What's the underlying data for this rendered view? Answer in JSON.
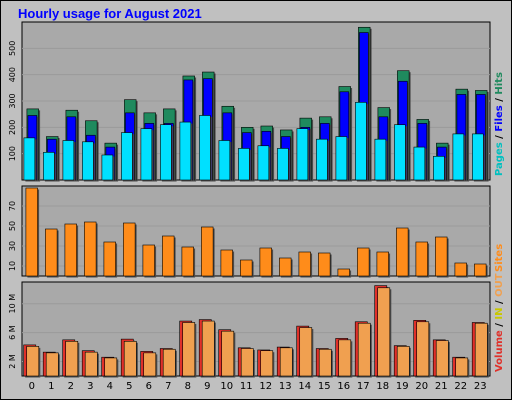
{
  "title": "Hourly usage for August 2021",
  "colors": {
    "frame_bg": "#c0c0c0",
    "plot_bg": "#a9a9a9",
    "grid": "#9a9a9a",
    "pages": "#00e0ff",
    "files": "#0000ff",
    "hits": "#1f8a5e",
    "sites": "#ff8c1a",
    "kb_in": "#e0302a",
    "kb_out": "#f0a050",
    "label_blue": "#0000ff",
    "label_teal": "#00c0c0",
    "label_green": "#1f8a5e",
    "label_orange": "#ff8c1a",
    "label_red": "#e0302a",
    "label_yellow": "#c8c800"
  },
  "chart_data": [
    {
      "type": "bar",
      "panel": "top",
      "categories": [
        "0",
        "1",
        "2",
        "3",
        "4",
        "5",
        "6",
        "7",
        "8",
        "9",
        "10",
        "11",
        "12",
        "13",
        "14",
        "15",
        "16",
        "17",
        "18",
        "19",
        "20",
        "21",
        "22",
        "23"
      ],
      "ylim": [
        0,
        600
      ],
      "yticks": [
        100,
        200,
        300,
        400,
        500
      ],
      "ylabel_parts": [
        {
          "text": "Pages",
          "color": "#00c0c0"
        },
        {
          "text": " / ",
          "color": "#000000"
        },
        {
          "text": "Files",
          "color": "#0000ff"
        },
        {
          "text": " / ",
          "color": "#000000"
        },
        {
          "text": "Hits",
          "color": "#1f8a5e"
        }
      ],
      "series": [
        {
          "name": "Hits",
          "values": [
            270,
            165,
            265,
            225,
            140,
            305,
            255,
            270,
            395,
            410,
            280,
            200,
            205,
            190,
            235,
            240,
            355,
            580,
            275,
            415,
            230,
            140,
            345,
            340
          ]
        },
        {
          "name": "Files",
          "values": [
            245,
            155,
            240,
            170,
            125,
            255,
            215,
            215,
            380,
            385,
            255,
            180,
            185,
            165,
            200,
            215,
            335,
            560,
            240,
            375,
            215,
            125,
            325,
            325
          ]
        },
        {
          "name": "Pages",
          "values": [
            160,
            105,
            150,
            145,
            95,
            180,
            195,
            210,
            220,
            245,
            150,
            120,
            130,
            120,
            195,
            155,
            165,
            295,
            155,
            210,
            125,
            90,
            175,
            175
          ]
        }
      ]
    },
    {
      "type": "bar",
      "panel": "middle",
      "categories": [
        "0",
        "1",
        "2",
        "3",
        "4",
        "5",
        "6",
        "7",
        "8",
        "9",
        "10",
        "11",
        "12",
        "13",
        "14",
        "15",
        "16",
        "17",
        "18",
        "19",
        "20",
        "21",
        "22",
        "23"
      ],
      "ylim": [
        0,
        90
      ],
      "yticks": [
        10,
        30,
        50,
        70
      ],
      "ylabel_parts": [
        {
          "text": "Sites",
          "color": "#ff8c1a"
        }
      ],
      "series": [
        {
          "name": "Sites",
          "values": [
            88,
            47,
            52,
            54,
            34,
            53,
            31,
            40,
            29,
            49,
            26,
            16,
            28,
            18,
            24,
            23,
            7,
            28,
            24,
            48,
            34,
            39,
            13,
            12
          ]
        }
      ]
    },
    {
      "type": "bar",
      "panel": "bottom",
      "categories": [
        "0",
        "1",
        "2",
        "3",
        "4",
        "5",
        "6",
        "7",
        "8",
        "9",
        "10",
        "11",
        "12",
        "13",
        "14",
        "15",
        "16",
        "17",
        "18",
        "19",
        "20",
        "21",
        "22",
        "23"
      ],
      "ylim": [
        0,
        13
      ],
      "yticks": [
        2,
        6,
        10
      ],
      "yticklabels": [
        "2 M",
        "6 M",
        "10 M"
      ],
      "ylabel_parts": [
        {
          "text": "Volume",
          "color": "#e0302a"
        },
        {
          "text": " / ",
          "color": "#000000"
        },
        {
          "text": "IN",
          "color": "#c8c800"
        },
        {
          "text": " / ",
          "color": "#000000"
        },
        {
          "text": "OUT",
          "color": "#f0a050"
        }
      ],
      "series": [
        {
          "name": "IN",
          "values": [
            4.3,
            3.3,
            5.0,
            3.5,
            2.6,
            5.1,
            3.4,
            3.8,
            7.6,
            7.8,
            6.4,
            3.9,
            3.6,
            4.0,
            6.9,
            3.8,
            5.2,
            7.5,
            12.5,
            4.2,
            7.7,
            5.0,
            2.6,
            7.4
          ]
        },
        {
          "name": "OUT",
          "values": [
            4.1,
            3.2,
            4.8,
            3.3,
            2.5,
            4.8,
            3.2,
            3.7,
            7.4,
            7.6,
            6.2,
            3.8,
            3.5,
            3.9,
            6.7,
            3.7,
            5.0,
            7.3,
            12.2,
            4.1,
            7.5,
            4.9,
            2.5,
            7.3
          ]
        }
      ]
    }
  ]
}
